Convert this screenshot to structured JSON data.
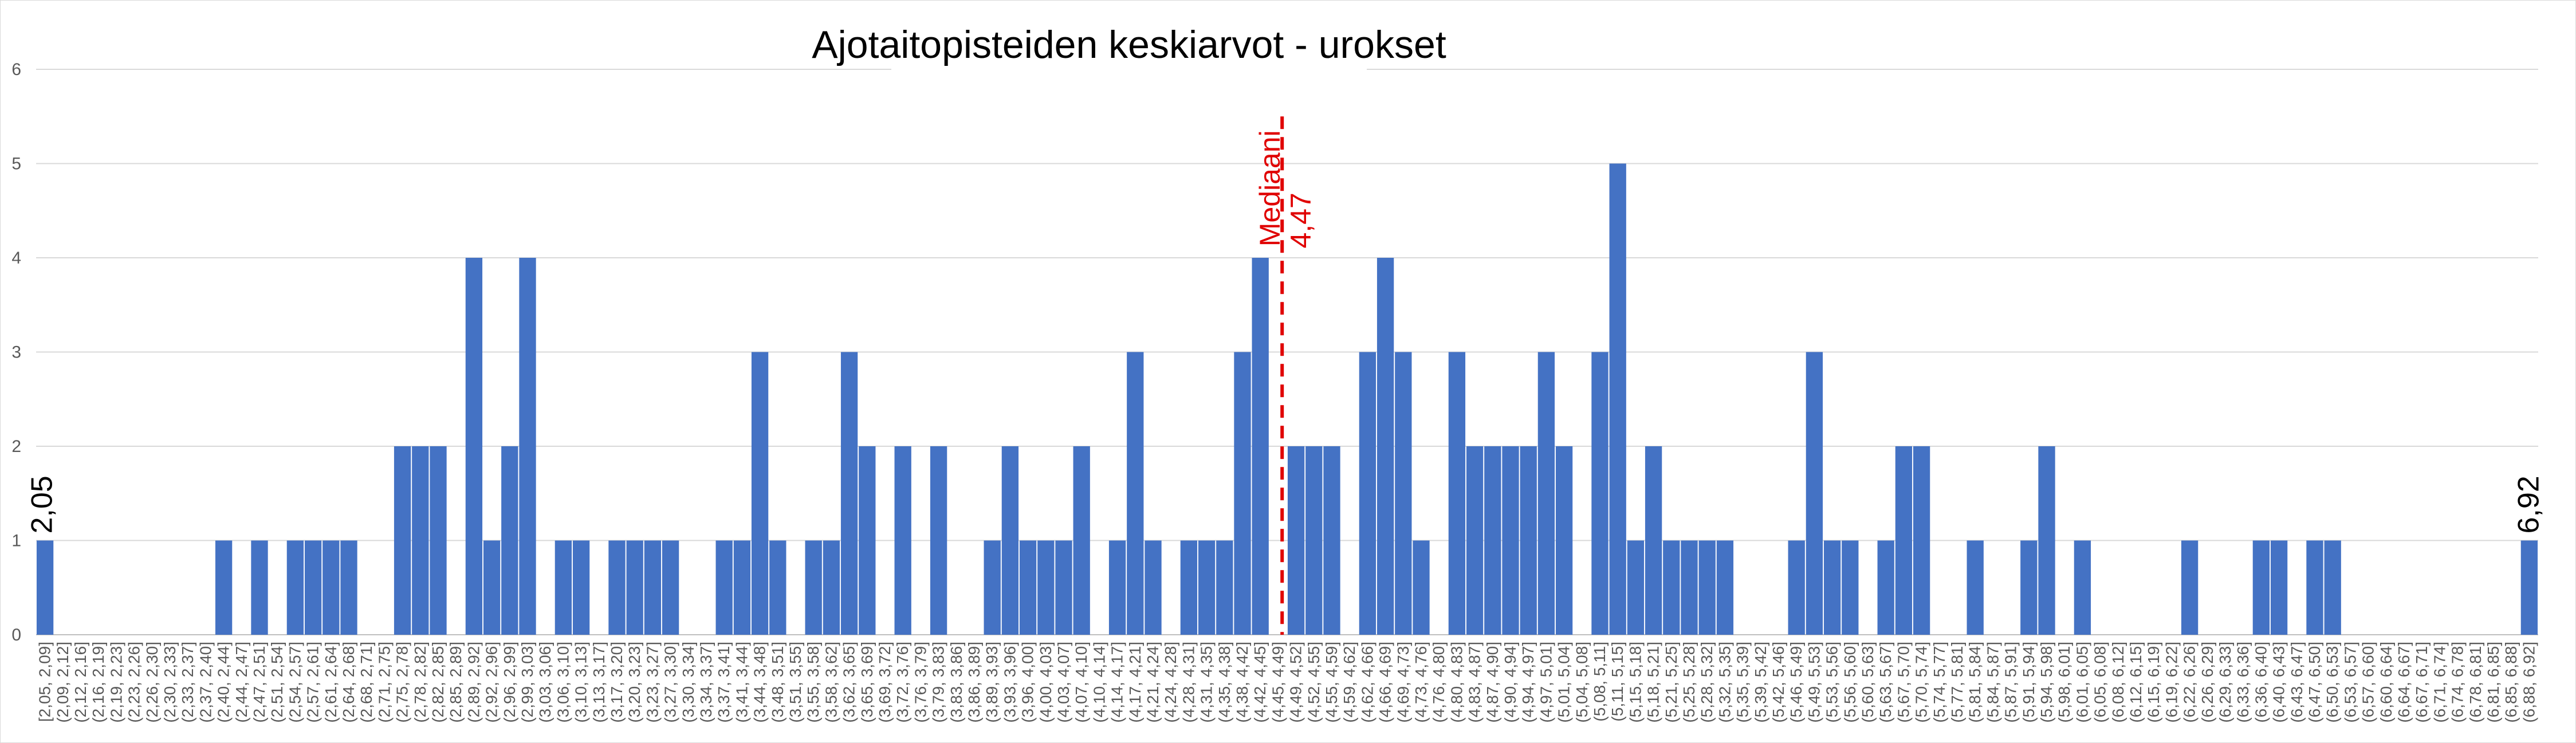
{
  "chart_data": {
    "type": "bar",
    "title": "Ajotaitopisteiden keskiarvot - urokset",
    "xlabel": "",
    "ylabel": "",
    "ylim": [
      0,
      6
    ],
    "yticks": [
      "0",
      "1",
      "2",
      "3",
      "4",
      "5",
      "6"
    ],
    "grid": true,
    "legend": "none",
    "bar_color": "#4472c4",
    "categories": [
      "[2,05, 2,09]",
      "(2,09, 2,12]",
      "(2,12, 2,16]",
      "(2,16, 2,19]",
      "(2,19, 2,23]",
      "(2,23, 2,26]",
      "(2,26, 2,30]",
      "(2,30, 2,33]",
      "(2,33, 2,37]",
      "(2,37, 2,40]",
      "(2,40, 2,44]",
      "(2,44, 2,47]",
      "(2,47, 2,51]",
      "(2,51, 2,54]",
      "(2,54, 2,57]",
      "(2,57, 2,61]",
      "(2,61, 2,64]",
      "(2,64, 2,68]",
      "(2,68, 2,71]",
      "(2,71, 2,75]",
      "(2,75, 2,78]",
      "(2,78, 2,82]",
      "(2,82, 2,85]",
      "(2,85, 2,89]",
      "(2,89, 2,92]",
      "(2,92, 2,96]",
      "(2,96, 2,99]",
      "(2,99, 3,03]",
      "(3,03, 3,06]",
      "(3,06, 3,10]",
      "(3,10, 3,13]",
      "(3,13, 3,17]",
      "(3,17, 3,20]",
      "(3,20, 3,23]",
      "(3,23, 3,27]",
      "(3,27, 3,30]",
      "(3,30, 3,34]",
      "(3,34, 3,37]",
      "(3,37, 3,41]",
      "(3,41, 3,44]",
      "(3,44, 3,48]",
      "(3,48, 3,51]",
      "(3,51, 3,55]",
      "(3,55, 3,58]",
      "(3,58, 3,62]",
      "(3,62, 3,65]",
      "(3,65, 3,69]",
      "(3,69, 3,72]",
      "(3,72, 3,76]",
      "(3,76, 3,79]",
      "(3,79, 3,83]",
      "(3,83, 3,86]",
      "(3,86, 3,89]",
      "(3,89, 3,93]",
      "(3,93, 3,96]",
      "(3,96, 4,00]",
      "(4,00, 4,03]",
      "(4,03, 4,07]",
      "(4,07, 4,10]",
      "(4,10, 4,14]",
      "(4,14, 4,17]",
      "(4,17, 4,21]",
      "(4,21, 4,24]",
      "(4,24, 4,28]",
      "(4,28, 4,31]",
      "(4,31, 4,35]",
      "(4,35, 4,38]",
      "(4,38, 4,42]",
      "(4,42, 4,45]",
      "(4,45, 4,49]",
      "(4,49, 4,52]",
      "(4,52, 4,55]",
      "(4,55, 4,59]",
      "(4,59, 4,62]",
      "(4,62, 4,66]",
      "(4,66, 4,69]",
      "(4,69, 4,73]",
      "(4,73, 4,76]",
      "(4,76, 4,80]",
      "(4,80, 4,83]",
      "(4,83, 4,87]",
      "(4,87, 4,90]",
      "(4,90, 4,94]",
      "(4,94, 4,97]",
      "(4,97, 5,01]",
      "(5,01, 5,04]",
      "(5,04, 5,08]",
      "(5,08, 5,11]",
      "(5,11, 5,15]",
      "(5,15, 5,18]",
      "(5,18, 5,21]",
      "(5,21, 5,25]",
      "(5,25, 5,28]",
      "(5,28, 5,32]",
      "(5,32, 5,35]",
      "(5,35, 5,39]",
      "(5,39, 5,42]",
      "(5,42, 5,46]",
      "(5,46, 5,49]",
      "(5,49, 5,53]",
      "(5,53, 5,56]",
      "(5,56, 5,60]",
      "(5,60, 5,63]",
      "(5,63, 5,67]",
      "(5,67, 5,70]",
      "(5,70, 5,74]",
      "(5,74, 5,77]",
      "(5,77, 5,81]",
      "(5,81, 5,84]",
      "(5,84, 5,87]",
      "(5,87, 5,91]",
      "(5,91, 5,94]",
      "(5,94, 5,98]",
      "(5,98, 6,01]",
      "(6,01, 6,05]",
      "(6,05, 6,08]",
      "(6,08, 6,12]",
      "(6,12, 6,15]",
      "(6,15, 6,19]",
      "(6,19, 6,22]",
      "(6,22, 6,26]",
      "(6,26, 6,29]",
      "(6,29, 6,33]",
      "(6,33, 6,36]",
      "(6,36, 6,40]",
      "(6,40, 6,43]",
      "(6,43, 6,47]",
      "(6,47, 6,50]",
      "(6,50, 6,53]",
      "(6,53, 6,57]",
      "(6,57, 6,60]",
      "(6,60, 6,64]",
      "(6,64, 6,67]",
      "(6,67, 6,71]",
      "(6,71, 6,74]",
      "(6,74, 6,78]",
      "(6,78, 6,81]",
      "(6,81, 6,85]",
      "(6,85, 6,88]",
      "(6,88, 6,92]"
    ],
    "values": [
      1,
      0,
      0,
      0,
      0,
      0,
      0,
      0,
      0,
      0,
      1,
      0,
      1,
      0,
      1,
      1,
      1,
      1,
      0,
      0,
      2,
      2,
      2,
      0,
      4,
      1,
      2,
      4,
      0,
      1,
      1,
      0,
      1,
      1,
      1,
      1,
      0,
      0,
      1,
      1,
      3,
      1,
      0,
      1,
      1,
      3,
      2,
      0,
      2,
      0,
      2,
      0,
      0,
      1,
      2,
      1,
      1,
      1,
      2,
      0,
      1,
      3,
      1,
      0,
      1,
      1,
      1,
      3,
      4,
      0,
      2,
      2,
      2,
      0,
      3,
      4,
      3,
      1,
      0,
      3,
      2,
      2,
      2,
      2,
      3,
      2,
      0,
      3,
      5,
      1,
      2,
      1,
      1,
      1,
      1,
      0,
      0,
      0,
      1,
      3,
      1,
      1,
      0,
      1,
      2,
      2,
      0,
      0,
      1,
      0,
      0,
      1,
      2,
      0,
      1,
      0,
      0,
      0,
      0,
      0,
      1,
      0,
      0,
      0,
      1,
      1,
      0,
      1,
      1,
      0,
      0,
      0,
      0,
      0,
      0,
      0,
      0,
      0,
      0,
      1
    ],
    "annotations": {
      "median_label": "Mediaani",
      "median_value": "4,47",
      "median_x": 4.47,
      "median_color": "#e00000",
      "min_label": "2,05",
      "max_label": "6,92"
    }
  }
}
